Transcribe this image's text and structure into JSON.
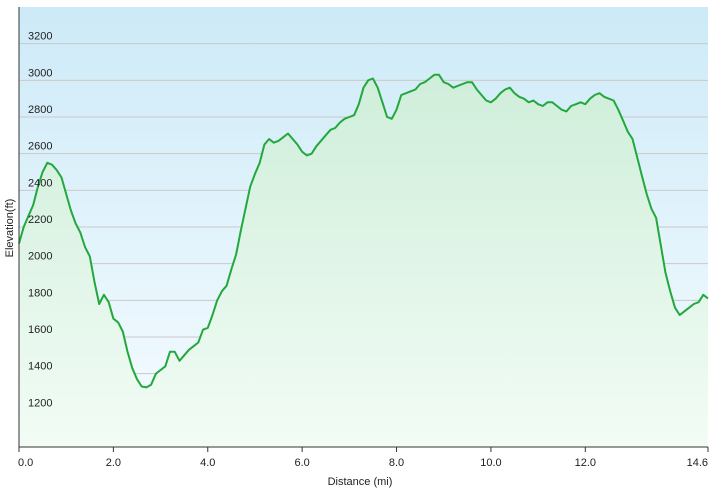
{
  "chart_data": {
    "type": "area",
    "title": "",
    "xlabel": "Distance  (mi)",
    "ylabel": "Elevation(ft)",
    "xlim": [
      0,
      14.6
    ],
    "ylim": [
      1000,
      3400
    ],
    "x_ticks": [
      "0.0",
      "2.0",
      "4.0",
      "6.0",
      "8.0",
      "10.0",
      "12.0",
      "14.6"
    ],
    "x_tick_values": [
      0,
      2,
      4,
      6,
      8,
      10,
      12,
      14.6
    ],
    "y_ticks": [
      "1200",
      "1400",
      "1600",
      "1800",
      "2000",
      "2200",
      "2400",
      "2600",
      "2800",
      "3000",
      "3200"
    ],
    "y_tick_values": [
      1200,
      1400,
      1600,
      1800,
      2000,
      2200,
      2400,
      2600,
      2800,
      3000,
      3200
    ],
    "grid": "horizontal",
    "colors": {
      "line": "#22a83c",
      "fill_top": "#cfeeda",
      "fill_bottom": "#f2fcf5",
      "bg_top": "#cdeaf8",
      "bg_bottom": "#f6fcff",
      "grid": "#c9c9c9",
      "axis": "#333333"
    },
    "series": [
      {
        "x": [
          0,
          0.1,
          0.2,
          0.3,
          0.4,
          0.5,
          0.6,
          0.7,
          0.8,
          0.9,
          1.0,
          1.1,
          1.2,
          1.3,
          1.4,
          1.5,
          1.6,
          1.7,
          1.8,
          1.9,
          2.0,
          2.1,
          2.2,
          2.3,
          2.4,
          2.5,
          2.6,
          2.7,
          2.8,
          2.9,
          3.0,
          3.1,
          3.2,
          3.3,
          3.4,
          3.5,
          3.6,
          3.7,
          3.8,
          3.9,
          4.0,
          4.1,
          4.2,
          4.3,
          4.4,
          4.5,
          4.6,
          4.7,
          4.8,
          4.9,
          5.0,
          5.1,
          5.2,
          5.3,
          5.4,
          5.5,
          5.6,
          5.7,
          5.8,
          5.9,
          6.0,
          6.1,
          6.2,
          6.3,
          6.4,
          6.5,
          6.6,
          6.7,
          6.8,
          6.9,
          7.0,
          7.1,
          7.2,
          7.3,
          7.4,
          7.5,
          7.6,
          7.7,
          7.8,
          7.9,
          8.0,
          8.1,
          8.2,
          8.3,
          8.4,
          8.5,
          8.6,
          8.7,
          8.8,
          8.9,
          9.0,
          9.1,
          9.2,
          9.3,
          9.4,
          9.5,
          9.6,
          9.7,
          9.8,
          9.9,
          10.0,
          10.1,
          10.2,
          10.3,
          10.4,
          10.5,
          10.6,
          10.7,
          10.8,
          10.9,
          11.0,
          11.1,
          11.2,
          11.3,
          11.4,
          11.5,
          11.6,
          11.7,
          11.8,
          11.9,
          12.0,
          12.1,
          12.2,
          12.3,
          12.4,
          12.5,
          12.6,
          12.7,
          12.8,
          12.9,
          13.0,
          13.1,
          13.2,
          13.3,
          13.4,
          13.5,
          13.6,
          13.7,
          13.8,
          13.9,
          14.0,
          14.1,
          14.2,
          14.3,
          14.4,
          14.5,
          14.6
        ],
        "values": [
          2110,
          2200,
          2260,
          2320,
          2420,
          2500,
          2550,
          2540,
          2510,
          2470,
          2380,
          2290,
          2220,
          2170,
          2090,
          2040,
          1900,
          1780,
          1830,
          1790,
          1700,
          1680,
          1630,
          1520,
          1430,
          1370,
          1330,
          1325,
          1340,
          1400,
          1420,
          1440,
          1520,
          1520,
          1470,
          1500,
          1530,
          1550,
          1570,
          1640,
          1650,
          1720,
          1800,
          1850,
          1880,
          1970,
          2050,
          2180,
          2300,
          2420,
          2490,
          2550,
          2650,
          2680,
          2660,
          2670,
          2690,
          2710,
          2680,
          2650,
          2610,
          2590,
          2600,
          2640,
          2670,
          2700,
          2730,
          2740,
          2770,
          2790,
          2800,
          2810,
          2870,
          2960,
          3000,
          3010,
          2960,
          2880,
          2800,
          2790,
          2840,
          2920,
          2930,
          2940,
          2950,
          2980,
          2990,
          3010,
          3030,
          3030,
          2990,
          2980,
          2960,
          2970,
          2980,
          2990,
          2990,
          2950,
          2920,
          2890,
          2880,
          2900,
          2930,
          2950,
          2960,
          2930,
          2910,
          2900,
          2880,
          2890,
          2870,
          2860,
          2880,
          2880,
          2860,
          2840,
          2830,
          2860,
          2870,
          2880,
          2870,
          2900,
          2920,
          2930,
          2910,
          2900,
          2890,
          2840,
          2780,
          2720,
          2680,
          2580,
          2480,
          2380,
          2300,
          2250,
          2100,
          1950,
          1850,
          1760,
          1720,
          1740,
          1760,
          1780,
          1790,
          1830,
          1810
        ]
      }
    ]
  }
}
